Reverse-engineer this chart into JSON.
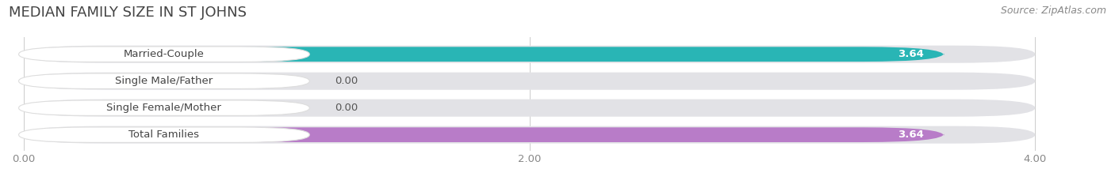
{
  "title": "MEDIAN FAMILY SIZE IN ST JOHNS",
  "source": "Source: ZipAtlas.com",
  "categories": [
    "Married-Couple",
    "Single Male/Father",
    "Single Female/Mother",
    "Total Families"
  ],
  "values": [
    3.64,
    0.0,
    0.0,
    3.64
  ],
  "bar_colors": [
    "#29b5b5",
    "#9baee8",
    "#f0a0b5",
    "#b87cc8"
  ],
  "bar_track_color": "#e2e2e6",
  "xlim_data": [
    0.0,
    4.0
  ],
  "xticks": [
    0.0,
    2.0,
    4.0
  ],
  "xtick_labels": [
    "0.00",
    "2.00",
    "4.00"
  ],
  "label_fontsize": 9.5,
  "value_fontsize": 9.5,
  "title_fontsize": 13,
  "source_fontsize": 9,
  "figsize": [
    14.06,
    2.33
  ],
  "dpi": 100,
  "bg_color": "#ffffff",
  "title_color": "#444444",
  "source_color": "#888888",
  "tick_color": "#888888",
  "grid_color": "#cccccc",
  "label_box_color": "#ffffff",
  "label_text_color": "#444444",
  "value_text_color": "#ffffff",
  "zero_value_text_color": "#555555"
}
